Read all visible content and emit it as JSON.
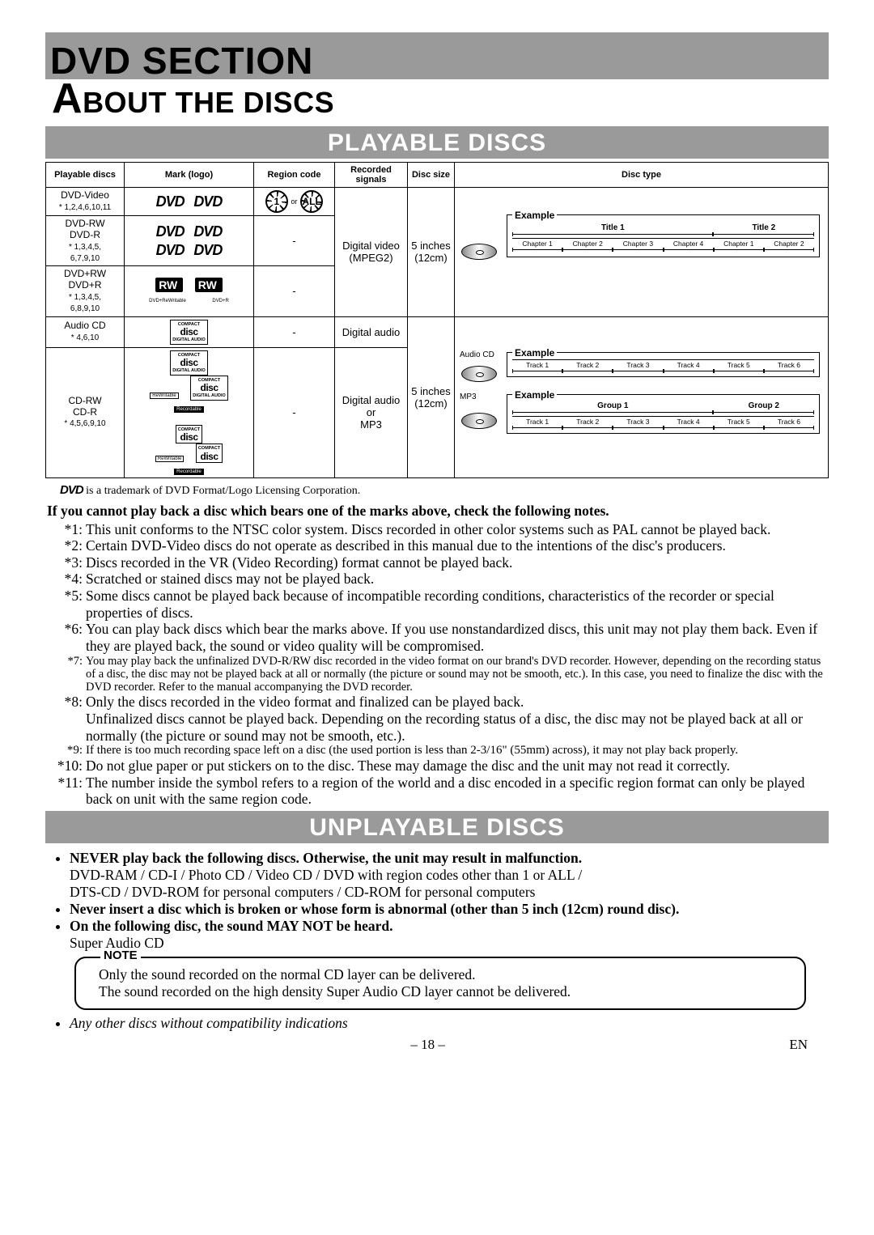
{
  "header": {
    "section": "DVD SECTION"
  },
  "title": "BOUT THE DISCS",
  "titleCap": "A",
  "sections": {
    "playable": "PLAYABLE DISCS",
    "unplayable": "UNPLAYABLE DISCS"
  },
  "table": {
    "headers": [
      "Playable discs",
      "Mark (logo)",
      "Region code",
      "Recorded signals",
      "Disc size",
      "Disc type"
    ],
    "rows": {
      "dvdvideo": {
        "name": "DVD-Video",
        "ast": "* 1,2,4,6,10,11",
        "region_or": "or"
      },
      "dvdrw": {
        "name": "DVD-RW\nDVD-R",
        "ast": "* 1,3,4,5,\n6,7,9,10",
        "region": "-",
        "signals": "Digital video\n(MPEG2)",
        "size": "5 inches\n(12cm)"
      },
      "dvdplusrw": {
        "name": "DVD+RW\nDVD+R",
        "ast": "* 1,3,4,5,\n6,8,9,10",
        "region": "-",
        "rw": "RW",
        "rw_sub1": "DVD+ReWritable",
        "rw_sub2": "DVD+R"
      },
      "audiocd": {
        "name": "Audio CD",
        "ast": "* 4,6,10",
        "region": "-",
        "signals": "Digital audio"
      },
      "cdrw": {
        "name": "CD-RW\nCD-R",
        "ast": "* 4,5,6,9,10",
        "region": "-",
        "signals": "Digital audio\nor\nMP3",
        "size": "5 inches\n(12cm)"
      }
    },
    "disc_logo": {
      "top": "COMPACT",
      "mid": "disc",
      "bot": "DIGITAL AUDIO",
      "rw": "ReWritable",
      "rec": "Recordable"
    },
    "examples": {
      "dvd": {
        "label": "Example",
        "titles": [
          "Title 1",
          "Title 2"
        ],
        "chapters1": [
          "Chapter 1",
          "Chapter 2",
          "Chapter 3",
          "Chapter 4"
        ],
        "chapters2": [
          "Chapter 1",
          "Chapter 2"
        ]
      },
      "cd": {
        "disc_label": "Audio CD",
        "label": "Example",
        "tracks": [
          "Track 1",
          "Track 2",
          "Track 3",
          "Track 4",
          "Track 5",
          "Track 6"
        ]
      },
      "mp3": {
        "disc_label": "MP3",
        "label": "Example",
        "groups": [
          "Group 1",
          "Group 2"
        ],
        "tracks1": [
          "Track 1",
          "Track 2",
          "Track 3",
          "Track 4"
        ],
        "tracks2": [
          "Track 5",
          "Track 6"
        ]
      }
    }
  },
  "trademark": "is a trademark of DVD Format/Logo Licensing Corporation.",
  "intro_bold": "If you cannot play back a disc which bears one of the marks above, check the following notes.",
  "notes": [
    {
      "n": "*1:",
      "t": "This unit conforms to the NTSC color system. Discs recorded in other color systems such as PAL cannot be played back."
    },
    {
      "n": "*2:",
      "t": "Certain DVD-Video discs do not operate as described in this manual due to the intentions of the disc's producers."
    },
    {
      "n": "*3:",
      "t": "Discs recorded in the VR (Video Recording) format cannot be played back."
    },
    {
      "n": "*4:",
      "t": "Scratched or stained discs may not be played back."
    },
    {
      "n": "*5:",
      "t": "Some discs cannot be played back because of incompatible recording conditions, characteristics of the recorder or special properties of discs."
    },
    {
      "n": "*6:",
      "t": "You can play back discs which bear the marks above. If you use nonstandardized discs, this unit may not play them back. Even if they are played back, the sound or video quality will be compromised."
    },
    {
      "n": "*7:",
      "t": "You may play back the unfinalized DVD-R/RW disc recorded in the video format on our brand's DVD recorder. However, depending on the recording status of a disc, the disc may not be played back at all or normally (the picture or sound may not be smooth, etc.). In this case, you need to finalize the disc with the DVD recorder. Refer to the manual accompanying the DVD recorder.",
      "cls": "small7"
    },
    {
      "n": "*8:",
      "t": "Only the discs recorded in the video format and finalized can be played back.\nUnfinalized discs cannot be played back. Depending on the recording status of a disc, the disc may not be played back at all or normally (the picture or sound may not be smooth, etc.)."
    },
    {
      "n": "*9:",
      "t": "If there is too much recording space left on a disc (the used portion is less than 2-3/16\" (55mm) across), it may not play back properly.",
      "cls": "small9"
    },
    {
      "n": "*10:",
      "t": "Do not glue paper or put stickers on to the disc. These may damage the disc and the unit may not read it correctly."
    },
    {
      "n": "*11:",
      "t": "The number inside the symbol refers to a region of the world and a disc encoded in a specific region format can only be played back on unit with the same region code."
    }
  ],
  "unplayable": {
    "b1": "NEVER play back the following discs. Otherwise, the unit may result in malfunction.",
    "l1": "DVD-RAM / CD-I / Photo CD / Video CD / DVD with region codes other than 1 or ALL /",
    "l2": "DTS-CD / DVD-ROM for personal computers / CD-ROM for personal computers",
    "b2": "Never insert a disc which is broken or whose form is abnormal (other than 5 inch (12cm) round disc).",
    "b3": "On the following disc, the sound MAY NOT be heard.",
    "l3": "Super Audio CD",
    "note_label": "NOTE",
    "note1": "Only the sound recorded on the normal CD layer can be delivered.",
    "note2": "The sound recorded on the high density Super Audio CD layer cannot be delivered.",
    "italic": "Any other discs without compatibility indications"
  },
  "footer": {
    "page": "– 18 –",
    "lang": "EN"
  }
}
